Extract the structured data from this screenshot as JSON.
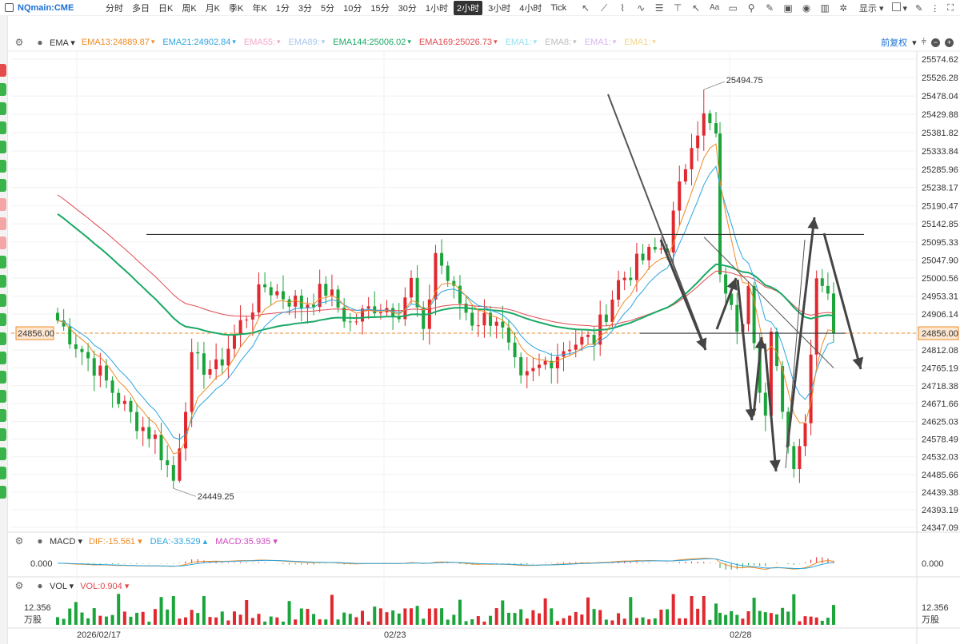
{
  "toolbar": {
    "symbol": "NQmain:CME",
    "timeframes": [
      "分时",
      "多日",
      "日K",
      "周K",
      "月K",
      "季K",
      "年K",
      "1分",
      "3分",
      "5分",
      "10分",
      "15分",
      "30分",
      "1小时",
      "2小时",
      "3小时",
      "4小时",
      "Tick"
    ],
    "active_timeframe": "2小时",
    "display_label": "显示"
  },
  "main_indicators": {
    "name": "EMA",
    "items": [
      {
        "text": "EMA13:24889.87",
        "color": "#f08a24"
      },
      {
        "text": "EMA21:24902.84",
        "color": "#2aa5e0"
      },
      {
        "text": "EMA55:",
        "color": "#f4a6c8"
      },
      {
        "text": "EMA89:",
        "color": "#a7c7ee"
      },
      {
        "text": "EMA144:25006.02",
        "color": "#19a864"
      },
      {
        "text": "EMA169:25026.73",
        "color": "#e0484d"
      },
      {
        "text": "EMA1:",
        "color": "#8fe3f2"
      },
      {
        "text": "EMA8:",
        "color": "#bdbdbd"
      },
      {
        "text": "EMA1:",
        "color": "#d8b4f0"
      },
      {
        "text": "EMA1:",
        "color": "#f0d58a"
      }
    ],
    "right_label": "前复权"
  },
  "price_axis": {
    "ticks": [
      "25574.62",
      "25526.28",
      "25478.04",
      "25429.88",
      "25381.82",
      "25333.84",
      "25285.96",
      "25238.17",
      "25190.47",
      "25142.85",
      "25095.33",
      "25047.90",
      "25000.56",
      "24953.31",
      "24906.14",
      "24856.00",
      "24812.08",
      "24765.19",
      "24718.38",
      "24671.66",
      "24625.03",
      "24578.49",
      "24532.03",
      "24485.66",
      "24439.38",
      "24393.19",
      "24347.09"
    ],
    "current_price": "24856.00",
    "high_label": "25494.75",
    "low_label": "24449.25"
  },
  "macd": {
    "name": "MACD",
    "dif": "DIF:-15.561",
    "dea": "DEA:-33.529",
    "macd": "MACD:35.935",
    "zero_left": "0.000",
    "zero_right": "0.000"
  },
  "vol": {
    "name": "VOL",
    "value": "VOL:0.904",
    "scale": "12.356",
    "unit": "万股"
  },
  "dates": [
    "2026/02/17",
    "02/23",
    "02/28"
  ],
  "colors": {
    "up": "#e0282e",
    "down": "#1aa43a",
    "accent": "#1b6fd6"
  }
}
